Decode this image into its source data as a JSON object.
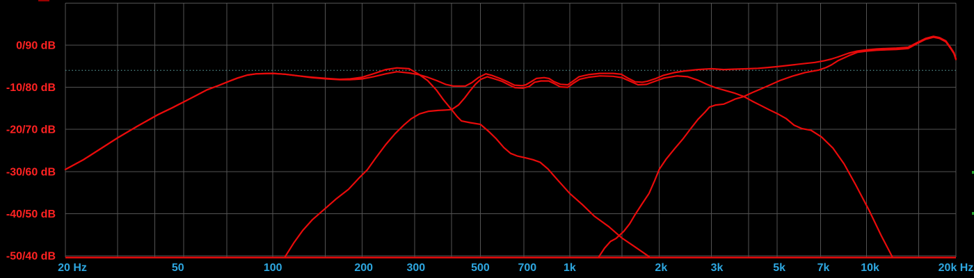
{
  "chart_data": {
    "type": "line",
    "title": "",
    "x_axis": {
      "scale": "log",
      "min": 20,
      "max": 20000,
      "unit": "Hz",
      "grid_freqs": [
        20,
        30,
        40,
        50,
        70,
        100,
        150,
        200,
        300,
        400,
        500,
        700,
        1000,
        1500,
        2000,
        3000,
        4000,
        5000,
        7000,
        10000,
        15000,
        20000
      ],
      "tick_labels": [
        {
          "f": 20,
          "label": "20 Hz",
          "dx": 10
        },
        {
          "f": 50,
          "label": "50",
          "dx": -8
        },
        {
          "f": 100,
          "label": "100",
          "dx": 0
        },
        {
          "f": 200,
          "label": "200",
          "dx": 2
        },
        {
          "f": 300,
          "label": "300",
          "dx": 2
        },
        {
          "f": 500,
          "label": "500",
          "dx": 0
        },
        {
          "f": 700,
          "label": "700",
          "dx": 5
        },
        {
          "f": 1000,
          "label": "1k",
          "dx": 0
        },
        {
          "f": 2000,
          "label": "2k",
          "dx": 3
        },
        {
          "f": 3000,
          "label": "3k",
          "dx": 8
        },
        {
          "f": 5000,
          "label": "5k",
          "dx": 3
        },
        {
          "f": 7000,
          "label": "7k",
          "dx": 4
        },
        {
          "f": 10000,
          "label": "10k",
          "dx": 5
        },
        {
          "f": 20000,
          "label": "20k Hz",
          "dx": 0
        }
      ]
    },
    "y_axis": {
      "unit": "dB",
      "range": [
        -50,
        10
      ],
      "grid_dbs": [
        10,
        0,
        -10,
        -20,
        -30,
        -40,
        -50
      ],
      "tick_labels": [
        {
          "db": 0,
          "label": "0/90 dB"
        },
        {
          "db": -10,
          "label": "-10/80 dB"
        },
        {
          "db": -20,
          "label": "-20/70 dB"
        },
        {
          "db": -30,
          "label": "-30/60 dB"
        },
        {
          "db": -40,
          "label": "-40/50 dB"
        },
        {
          "db": -50,
          "label": "-50/40 dB"
        }
      ]
    },
    "reference_line": {
      "db": -6,
      "style": "dotted"
    },
    "legend": {
      "visible": false
    },
    "colors": {
      "background": "#000000",
      "curve": "#e90b0b",
      "baseline": "#e90b0b",
      "grid": "#545454",
      "reference": "#4c8484",
      "x_label": "#2ea7e0",
      "y_label": "#ff2222",
      "edge_dot": "#23a52a"
    },
    "series": [
      {
        "name": "woofer",
        "points": [
          [
            20,
            -29.5
          ],
          [
            23,
            -27.2
          ],
          [
            26,
            -24.8
          ],
          [
            30,
            -22.0
          ],
          [
            35,
            -19.2
          ],
          [
            41,
            -16.5
          ],
          [
            46,
            -14.8
          ],
          [
            50,
            -13.5
          ],
          [
            55,
            -12.0
          ],
          [
            60,
            -10.6
          ],
          [
            66,
            -9.5
          ],
          [
            71,
            -8.6
          ],
          [
            76,
            -7.8
          ],
          [
            82,
            -7.1
          ],
          [
            88,
            -6.8
          ],
          [
            100,
            -6.7
          ],
          [
            110,
            -6.9
          ],
          [
            122,
            -7.3
          ],
          [
            135,
            -7.6
          ],
          [
            152,
            -7.9
          ],
          [
            168,
            -8.1
          ],
          [
            182,
            -8.0
          ],
          [
            200,
            -7.6
          ],
          [
            218,
            -6.8
          ],
          [
            240,
            -5.8
          ],
          [
            262,
            -5.4
          ],
          [
            288,
            -5.6
          ],
          [
            310,
            -6.9
          ],
          [
            332,
            -8.4
          ],
          [
            355,
            -10.6
          ],
          [
            375,
            -12.9
          ],
          [
            400,
            -15.3
          ],
          [
            418,
            -17.0
          ],
          [
            432,
            -18.0
          ],
          [
            462,
            -18.4
          ],
          [
            500,
            -18.8
          ],
          [
            532,
            -20.4
          ],
          [
            565,
            -22.2
          ],
          [
            600,
            -24.3
          ],
          [
            632,
            -25.7
          ],
          [
            665,
            -26.3
          ],
          [
            705,
            -26.7
          ],
          [
            752,
            -27.2
          ],
          [
            795,
            -27.8
          ],
          [
            845,
            -29.4
          ],
          [
            905,
            -31.8
          ],
          [
            1000,
            -35.2
          ],
          [
            1105,
            -37.9
          ],
          [
            1210,
            -40.6
          ],
          [
            1355,
            -43.1
          ],
          [
            1500,
            -45.8
          ],
          [
            1660,
            -47.9
          ],
          [
            1850,
            -50.2
          ]
        ]
      },
      {
        "name": "midrange",
        "points": [
          [
            110,
            -50.2
          ],
          [
            118,
            -46.8
          ],
          [
            126,
            -44.0
          ],
          [
            136,
            -41.4
          ],
          [
            150,
            -38.8
          ],
          [
            164,
            -36.4
          ],
          [
            180,
            -34.2
          ],
          [
            196,
            -31.4
          ],
          [
            208,
            -29.6
          ],
          [
            222,
            -26.8
          ],
          [
            240,
            -23.6
          ],
          [
            258,
            -21.0
          ],
          [
            276,
            -19.0
          ],
          [
            292,
            -17.5
          ],
          [
            312,
            -16.3
          ],
          [
            335,
            -15.7
          ],
          [
            360,
            -15.5
          ],
          [
            382,
            -15.4
          ],
          [
            400,
            -15.3
          ],
          [
            422,
            -14.2
          ],
          [
            443,
            -12.5
          ],
          [
            462,
            -10.8
          ],
          [
            482,
            -9.2
          ],
          [
            502,
            -8.1
          ],
          [
            528,
            -7.5
          ],
          [
            558,
            -8.0
          ],
          [
            592,
            -8.6
          ],
          [
            628,
            -9.5
          ],
          [
            655,
            -10.1
          ],
          [
            695,
            -10.2
          ],
          [
            730,
            -9.8
          ],
          [
            762,
            -8.8
          ],
          [
            800,
            -8.5
          ],
          [
            850,
            -8.5
          ],
          [
            892,
            -9.2
          ],
          [
            930,
            -9.9
          ],
          [
            985,
            -10.0
          ],
          [
            1030,
            -9.0
          ],
          [
            1080,
            -8.1
          ],
          [
            1160,
            -7.6
          ],
          [
            1265,
            -7.3
          ],
          [
            1400,
            -7.4
          ],
          [
            1500,
            -7.7
          ],
          [
            1590,
            -8.5
          ],
          [
            1700,
            -9.4
          ],
          [
            1815,
            -9.3
          ],
          [
            1950,
            -8.5
          ],
          [
            2080,
            -7.8
          ],
          [
            2300,
            -7.3
          ],
          [
            2500,
            -7.5
          ],
          [
            2700,
            -8.3
          ],
          [
            2900,
            -9.3
          ],
          [
            3100,
            -10.1
          ],
          [
            3320,
            -10.7
          ],
          [
            3600,
            -11.4
          ],
          [
            3860,
            -12.2
          ],
          [
            4120,
            -13.3
          ],
          [
            4400,
            -14.3
          ],
          [
            4720,
            -15.4
          ],
          [
            5050,
            -16.4
          ],
          [
            5350,
            -17.4
          ],
          [
            5700,
            -19.0
          ],
          [
            6050,
            -19.8
          ],
          [
            6500,
            -20.2
          ],
          [
            7050,
            -21.8
          ],
          [
            7700,
            -24.4
          ],
          [
            8400,
            -28.2
          ],
          [
            9200,
            -33.2
          ],
          [
            10200,
            -39.2
          ],
          [
            11200,
            -45.2
          ],
          [
            12200,
            -50.2
          ]
        ]
      },
      {
        "name": "tweeter",
        "points": [
          [
            1255,
            -50.2
          ],
          [
            1310,
            -48.2
          ],
          [
            1372,
            -46.6
          ],
          [
            1432,
            -45.9
          ],
          [
            1520,
            -44.2
          ],
          [
            1592,
            -42.4
          ],
          [
            1662,
            -40.2
          ],
          [
            1752,
            -37.7
          ],
          [
            1850,
            -35.2
          ],
          [
            1932,
            -32.2
          ],
          [
            2005,
            -29.4
          ],
          [
            2110,
            -27.1
          ],
          [
            2255,
            -24.6
          ],
          [
            2405,
            -22.3
          ],
          [
            2550,
            -19.9
          ],
          [
            2705,
            -17.6
          ],
          [
            2855,
            -15.9
          ],
          [
            2955,
            -14.7
          ],
          [
            3105,
            -14.2
          ],
          [
            3305,
            -14.0
          ],
          [
            3455,
            -13.4
          ],
          [
            3605,
            -12.8
          ],
          [
            3860,
            -12.2
          ],
          [
            4105,
            -11.3
          ],
          [
            4405,
            -10.4
          ],
          [
            4705,
            -9.5
          ],
          [
            5105,
            -8.4
          ],
          [
            5605,
            -7.4
          ],
          [
            6205,
            -6.5
          ],
          [
            6905,
            -5.9
          ],
          [
            7305,
            -5.3
          ],
          [
            7605,
            -4.7
          ],
          [
            8005,
            -3.7
          ],
          [
            8705,
            -2.5
          ],
          [
            9305,
            -1.7
          ],
          [
            10005,
            -1.4
          ],
          [
            10805,
            -1.2
          ],
          [
            11605,
            -1.1
          ],
          [
            12605,
            -1.0
          ],
          [
            13805,
            -0.8
          ],
          [
            14805,
            0.4
          ],
          [
            15805,
            1.4
          ],
          [
            16805,
            1.9
          ],
          [
            17605,
            1.6
          ],
          [
            18505,
            0.8
          ],
          [
            19205,
            -0.8
          ],
          [
            19705,
            -2.0
          ],
          [
            20000,
            -3.4
          ]
        ]
      },
      {
        "name": "summed-response",
        "points": [
          [
            20,
            -29.5
          ],
          [
            23,
            -27.2
          ],
          [
            26,
            -24.8
          ],
          [
            30,
            -22.0
          ],
          [
            35,
            -19.2
          ],
          [
            41,
            -16.5
          ],
          [
            46,
            -14.8
          ],
          [
            50,
            -13.5
          ],
          [
            55,
            -12.0
          ],
          [
            60,
            -10.6
          ],
          [
            66,
            -9.5
          ],
          [
            71,
            -8.6
          ],
          [
            76,
            -7.8
          ],
          [
            82,
            -7.1
          ],
          [
            88,
            -6.8
          ],
          [
            100,
            -6.7
          ],
          [
            110,
            -6.9
          ],
          [
            122,
            -7.3
          ],
          [
            135,
            -7.7
          ],
          [
            152,
            -8.0
          ],
          [
            168,
            -8.2
          ],
          [
            182,
            -8.2
          ],
          [
            200,
            -8.0
          ],
          [
            218,
            -7.5
          ],
          [
            240,
            -6.8
          ],
          [
            262,
            -6.3
          ],
          [
            288,
            -6.6
          ],
          [
            310,
            -7.0
          ],
          [
            332,
            -7.6
          ],
          [
            356,
            -8.4
          ],
          [
            382,
            -9.3
          ],
          [
            405,
            -9.7
          ],
          [
            445,
            -9.7
          ],
          [
            468,
            -8.9
          ],
          [
            492,
            -7.7
          ],
          [
            522,
            -6.8
          ],
          [
            548,
            -7.2
          ],
          [
            582,
            -7.9
          ],
          [
            622,
            -8.8
          ],
          [
            652,
            -9.5
          ],
          [
            692,
            -9.6
          ],
          [
            712,
            -9.4
          ],
          [
            748,
            -8.5
          ],
          [
            772,
            -7.9
          ],
          [
            820,
            -7.7
          ],
          [
            852,
            -7.9
          ],
          [
            882,
            -8.6
          ],
          [
            932,
            -9.3
          ],
          [
            985,
            -9.4
          ],
          [
            1032,
            -8.4
          ],
          [
            1075,
            -7.5
          ],
          [
            1155,
            -7.0
          ],
          [
            1262,
            -6.7
          ],
          [
            1400,
            -6.7
          ],
          [
            1492,
            -6.9
          ],
          [
            1578,
            -7.9
          ],
          [
            1662,
            -8.7
          ],
          [
            1755,
            -8.8
          ],
          [
            1822,
            -8.6
          ],
          [
            1952,
            -7.9
          ],
          [
            2062,
            -7.2
          ],
          [
            2252,
            -6.5
          ],
          [
            2452,
            -6.1
          ],
          [
            2702,
            -5.8
          ],
          [
            3002,
            -5.6
          ],
          [
            3302,
            -5.8
          ],
          [
            3602,
            -5.7
          ],
          [
            4002,
            -5.6
          ],
          [
            4302,
            -5.5
          ],
          [
            4652,
            -5.3
          ],
          [
            5002,
            -5.1
          ],
          [
            5602,
            -4.7
          ],
          [
            6102,
            -4.4
          ],
          [
            6702,
            -4.1
          ],
          [
            7202,
            -3.7
          ],
          [
            7602,
            -3.3
          ],
          [
            8002,
            -2.8
          ],
          [
            8702,
            -1.9
          ],
          [
            9302,
            -1.4
          ],
          [
            10002,
            -1.1
          ],
          [
            10802,
            -0.9
          ],
          [
            11602,
            -0.8
          ],
          [
            12602,
            -0.7
          ],
          [
            13802,
            -0.5
          ],
          [
            14802,
            0.6
          ],
          [
            15802,
            1.6
          ],
          [
            16802,
            2.1
          ],
          [
            17602,
            1.8
          ],
          [
            18502,
            1.0
          ],
          [
            19202,
            -0.6
          ],
          [
            19702,
            -1.8
          ],
          [
            20000,
            -3.2
          ]
        ]
      }
    ]
  }
}
